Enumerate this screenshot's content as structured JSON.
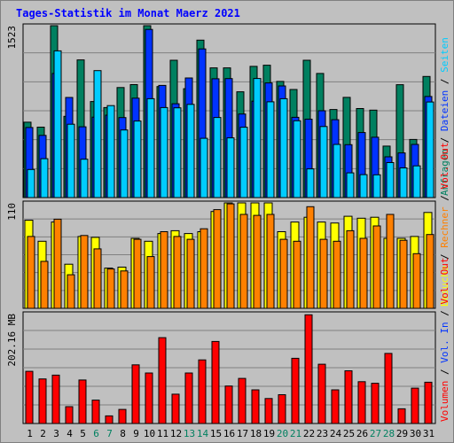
{
  "title": "Tages-Statistik im Monat Maerz 2021",
  "colors": {
    "anfragen": "#008060",
    "dateien": "#0033ff",
    "seiten": "#00ccff",
    "besuche": "#ffff00",
    "rechner": "#ff8000",
    "volumen": "#ff0000",
    "weekday_label": "#000000",
    "weekend_label": "#008060"
  },
  "chart_data": [
    {
      "type": "bar",
      "panel": "hits",
      "y_max_label": "1523",
      "ylim": [
        0,
        1523
      ],
      "right_labels": [
        {
          "text": "Anfragen",
          "color": "#008060"
        },
        {
          "text": " / ",
          "color": "#000000"
        },
        {
          "text": "Dateien",
          "color": "#0033ff"
        },
        {
          "text": " / ",
          "color": "#000000"
        },
        {
          "text": "Seiten",
          "color": "#00ccff"
        }
      ],
      "series": [
        {
          "name": "Anfragen",
          "values": [
            668,
            624,
            1523,
            720,
            1220,
            851,
            798,
            975,
            1001,
            1523,
            984,
            1217,
            965,
            1395,
            1149,
            1149,
            937,
            1163,
            1173,
            1029,
            958,
            1217,
            1100,
            780,
            888,
            789,
            775,
            456,
            1000,
            515,
            1073
          ]
        },
        {
          "name": "Dateien",
          "values": [
            621,
            551,
            1100,
            887,
            627,
            713,
            730,
            709,
            881,
            1490,
            994,
            831,
            1060,
            1317,
            1053,
            1054,
            740,
            854,
            1016,
            989,
            711,
            695,
            769,
            690,
            469,
            576,
            535,
            361,
            396,
            471,
            896
          ]
        },
        {
          "name": "Seiten",
          "values": [
            249,
            345,
            1300,
            650,
            340,
            1125,
            815,
            599,
            678,
            876,
            798,
            795,
            826,
            525,
            710,
            529,
            623,
            1055,
            849,
            876,
            681,
            254,
            630,
            471,
            219,
            203,
            202,
            310,
            263,
            281,
            847
          ]
        }
      ]
    },
    {
      "type": "bar",
      "panel": "visits",
      "y_max_label": "110",
      "ylim": [
        0,
        110
      ],
      "right_labels": [
        {
          "text": "Besuche",
          "color": "#ffff00"
        },
        {
          "text": " / ",
          "color": "#000000"
        },
        {
          "text": "Rechner",
          "color": "#ff8000"
        },
        {
          "text": " / ",
          "color": "#000000"
        },
        {
          "text": "Vol. Out",
          "color": "#ff0000"
        }
      ],
      "series": [
        {
          "name": "Besuche",
          "values": [
            92,
            70,
            90,
            46,
            75,
            74,
            42,
            43,
            73,
            70,
            78,
            81,
            78,
            80,
            101,
            110,
            110,
            110,
            110,
            80,
            90,
            95,
            90,
            89,
            96,
            94,
            95,
            73,
            73,
            75,
            100
          ]
        },
        {
          "name": "Rechner",
          "values": [
            75,
            49,
            93,
            35,
            76,
            62,
            41,
            39,
            72,
            54,
            80,
            75,
            72,
            83,
            103,
            109,
            98,
            97,
            98,
            72,
            70,
            106,
            72,
            70,
            81,
            73,
            86,
            98,
            71,
            57,
            77
          ]
        }
      ]
    },
    {
      "type": "bar",
      "panel": "volume",
      "y_max_label": "202.16 MB",
      "ylim": [
        0,
        202.16
      ],
      "unit": "MB",
      "right_labels": [
        {
          "text": "Volumen",
          "color": "#ff0000"
        },
        {
          "text": " / ",
          "color": "#000000"
        },
        {
          "text": "Vol. In",
          "color": "#0033ff"
        },
        {
          "text": " / ",
          "color": "#000000"
        },
        {
          "text": "Vol. Out",
          "color": "#ff0000"
        }
      ],
      "series": [
        {
          "name": "Volumen",
          "values": [
            96,
            82,
            89,
            31,
            80,
            43,
            14,
            26,
            108,
            93,
            158,
            54,
            93,
            117,
            151,
            69,
            83,
            62,
            46,
            53,
            120,
            200,
            109,
            62,
            97,
            77,
            74,
            129,
            27,
            65,
            76
          ]
        }
      ]
    }
  ],
  "days": [
    {
      "label": "1",
      "weekend": false
    },
    {
      "label": "2",
      "weekend": false
    },
    {
      "label": "3",
      "weekend": false
    },
    {
      "label": "4",
      "weekend": false
    },
    {
      "label": "5",
      "weekend": false
    },
    {
      "label": "6",
      "weekend": true
    },
    {
      "label": "7",
      "weekend": true
    },
    {
      "label": "8",
      "weekend": false
    },
    {
      "label": "9",
      "weekend": false
    },
    {
      "label": "10",
      "weekend": false
    },
    {
      "label": "11",
      "weekend": false
    },
    {
      "label": "12",
      "weekend": false
    },
    {
      "label": "13",
      "weekend": true
    },
    {
      "label": "14",
      "weekend": true
    },
    {
      "label": "15",
      "weekend": false
    },
    {
      "label": "16",
      "weekend": false
    },
    {
      "label": "17",
      "weekend": false
    },
    {
      "label": "18",
      "weekend": false
    },
    {
      "label": "19",
      "weekend": false
    },
    {
      "label": "20",
      "weekend": true
    },
    {
      "label": "21",
      "weekend": true
    },
    {
      "label": "22",
      "weekend": false
    },
    {
      "label": "23",
      "weekend": false
    },
    {
      "label": "24",
      "weekend": false
    },
    {
      "label": "25",
      "weekend": false
    },
    {
      "label": "26",
      "weekend": false
    },
    {
      "label": "27",
      "weekend": true
    },
    {
      "label": "28",
      "weekend": true
    },
    {
      "label": "29",
      "weekend": false
    },
    {
      "label": "30",
      "weekend": false
    },
    {
      "label": "31",
      "weekend": false
    }
  ]
}
